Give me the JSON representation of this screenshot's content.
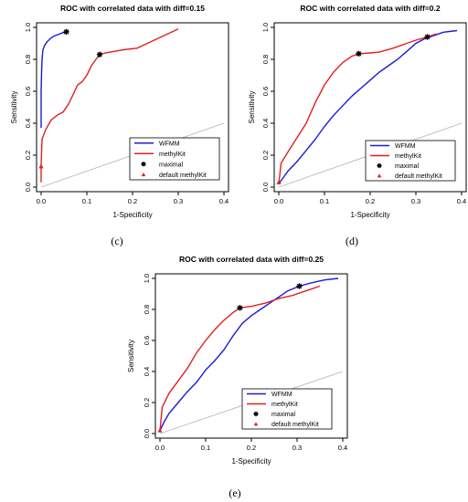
{
  "captions": [
    "(c)",
    "(d)",
    "(e)"
  ],
  "chart_data": [
    {
      "type": "line",
      "title": "ROC with correlated data with diff=0.15",
      "xlabel": "1-Specificity",
      "ylabel": "Sensitivity",
      "xlim": [
        0,
        0.4
      ],
      "ylim": [
        0,
        1.0
      ],
      "xticks": [
        "0.0",
        "0.1",
        "0.2",
        "0.3",
        "0.4"
      ],
      "yticks": [
        "0.0",
        "0.2",
        "0.4",
        "0.6",
        "0.8",
        "1.0"
      ],
      "legend_position": "bottom-right",
      "legend": [
        "WFMM",
        "methylKit",
        "maximal",
        "default methylKit"
      ],
      "colors": {
        "WFMM": "#1a1adb",
        "methylKit": "#e02020",
        "maximal": "#000000",
        "default": "#e02020",
        "diagonal": "#b5b5b5"
      },
      "series": [
        {
          "name": "WFMM",
          "x": [
            0.0,
            0.0,
            0.001,
            0.002,
            0.004,
            0.008,
            0.013,
            0.02,
            0.028,
            0.037,
            0.046,
            0.055,
            0.06
          ],
          "y": [
            0.37,
            0.6,
            0.72,
            0.8,
            0.86,
            0.89,
            0.91,
            0.93,
            0.945,
            0.955,
            0.965,
            0.972,
            0.978
          ]
        },
        {
          "name": "methylKit",
          "x": [
            0.0,
            0.0,
            0.002,
            0.01,
            0.022,
            0.035,
            0.048,
            0.06,
            0.07,
            0.08,
            0.09,
            0.1,
            0.11,
            0.12,
            0.128,
            0.14,
            0.16,
            0.18,
            0.21,
            0.24,
            0.27,
            0.3
          ],
          "y": [
            0.03,
            0.14,
            0.3,
            0.36,
            0.42,
            0.45,
            0.47,
            0.52,
            0.58,
            0.64,
            0.66,
            0.7,
            0.76,
            0.8,
            0.83,
            0.84,
            0.85,
            0.86,
            0.87,
            0.91,
            0.95,
            0.99
          ]
        }
      ],
      "diagonal": {
        "x": [
          0,
          0.4
        ],
        "y": [
          0,
          0.4
        ]
      },
      "maximal_point": {
        "x": 0.055,
        "y": 0.972
      },
      "maximal_point_methylkit": {
        "x": 0.128,
        "y": 0.83
      },
      "default_point": {
        "x": 0.0,
        "y": 0.13
      }
    },
    {
      "type": "line",
      "title": "ROC with correlated data with diff=0.2",
      "xlabel": "1-Specificity",
      "ylabel": "Sensitivity",
      "xlim": [
        0,
        0.4
      ],
      "ylim": [
        0,
        1.0
      ],
      "xticks": [
        "0.0",
        "0.1",
        "0.2",
        "0.3",
        "0.4"
      ],
      "yticks": [
        "0.0",
        "0.2",
        "0.4",
        "0.6",
        "0.8",
        "1.0"
      ],
      "legend_position": "bottom-right",
      "legend": [
        "WFMM",
        "methylKit",
        "maximal",
        "default methylKit"
      ],
      "colors": {
        "WFMM": "#1a1adb",
        "methylKit": "#e02020",
        "maximal": "#000000",
        "default": "#e02020",
        "diagonal": "#b5b5b5"
      },
      "series": [
        {
          "name": "WFMM",
          "x": [
            0.0,
            0.01,
            0.02,
            0.04,
            0.06,
            0.08,
            0.1,
            0.12,
            0.14,
            0.16,
            0.18,
            0.2,
            0.22,
            0.24,
            0.26,
            0.28,
            0.3,
            0.32,
            0.34,
            0.36,
            0.39
          ],
          "y": [
            0.02,
            0.06,
            0.1,
            0.16,
            0.23,
            0.3,
            0.38,
            0.45,
            0.51,
            0.57,
            0.62,
            0.67,
            0.72,
            0.76,
            0.8,
            0.85,
            0.9,
            0.93,
            0.95,
            0.97,
            0.98
          ]
        },
        {
          "name": "methylKit",
          "x": [
            0.0,
            0.005,
            0.02,
            0.04,
            0.06,
            0.08,
            0.1,
            0.12,
            0.14,
            0.16,
            0.175,
            0.2,
            0.22,
            0.25,
            0.28,
            0.3,
            0.325,
            0.345
          ],
          "y": [
            0.02,
            0.15,
            0.22,
            0.31,
            0.4,
            0.53,
            0.64,
            0.72,
            0.78,
            0.82,
            0.835,
            0.84,
            0.845,
            0.87,
            0.9,
            0.92,
            0.94,
            0.96
          ]
        }
      ],
      "diagonal": {
        "x": [
          0,
          0.4
        ],
        "y": [
          0,
          0.4
        ]
      },
      "maximal_point": {
        "x": 0.325,
        "y": 0.94
      },
      "maximal_point_methylkit": {
        "x": 0.175,
        "y": 0.835
      },
      "default_point": {
        "x": 0.0,
        "y": 0.03
      }
    },
    {
      "type": "line",
      "title": "ROC with correlated data with diff=0.25",
      "xlabel": "1-Specificity",
      "ylabel": "Sensitivity",
      "xlim": [
        0,
        0.4
      ],
      "ylim": [
        0,
        1.0
      ],
      "xticks": [
        "0.0",
        "0.1",
        "0.2",
        "0.3",
        "0.4"
      ],
      "yticks": [
        "0.0",
        "0.2",
        "0.4",
        "0.6",
        "0.8",
        "1.0"
      ],
      "legend_position": "bottom-right",
      "legend": [
        "WFMM",
        "methylKit",
        "maximal",
        "default methylKit"
      ],
      "colors": {
        "WFMM": "#1a1adb",
        "methylKit": "#e02020",
        "maximal": "#000000",
        "default": "#e02020",
        "diagonal": "#b5b5b5"
      },
      "series": [
        {
          "name": "WFMM",
          "x": [
            0.0,
            0.01,
            0.02,
            0.04,
            0.06,
            0.08,
            0.1,
            0.12,
            0.14,
            0.16,
            0.18,
            0.2,
            0.22,
            0.24,
            0.26,
            0.28,
            0.305,
            0.33,
            0.36,
            0.39
          ],
          "y": [
            0.02,
            0.08,
            0.13,
            0.2,
            0.27,
            0.33,
            0.41,
            0.47,
            0.54,
            0.63,
            0.71,
            0.76,
            0.8,
            0.84,
            0.88,
            0.92,
            0.95,
            0.97,
            0.99,
            1.0
          ]
        },
        {
          "name": "methylKit",
          "x": [
            0.0,
            0.005,
            0.02,
            0.04,
            0.06,
            0.08,
            0.1,
            0.12,
            0.14,
            0.16,
            0.175,
            0.2,
            0.23,
            0.26,
            0.29,
            0.32,
            0.35
          ],
          "y": [
            0.02,
            0.17,
            0.26,
            0.34,
            0.42,
            0.52,
            0.6,
            0.67,
            0.73,
            0.78,
            0.81,
            0.82,
            0.84,
            0.87,
            0.89,
            0.92,
            0.95
          ]
        }
      ],
      "diagonal": {
        "x": [
          0,
          0.4
        ],
        "y": [
          0,
          0.4
        ]
      },
      "maximal_point": {
        "x": 0.305,
        "y": 0.95
      },
      "maximal_point_methylkit": {
        "x": 0.175,
        "y": 0.81
      },
      "default_point": {
        "x": 0.0,
        "y": 0.02
      }
    }
  ]
}
